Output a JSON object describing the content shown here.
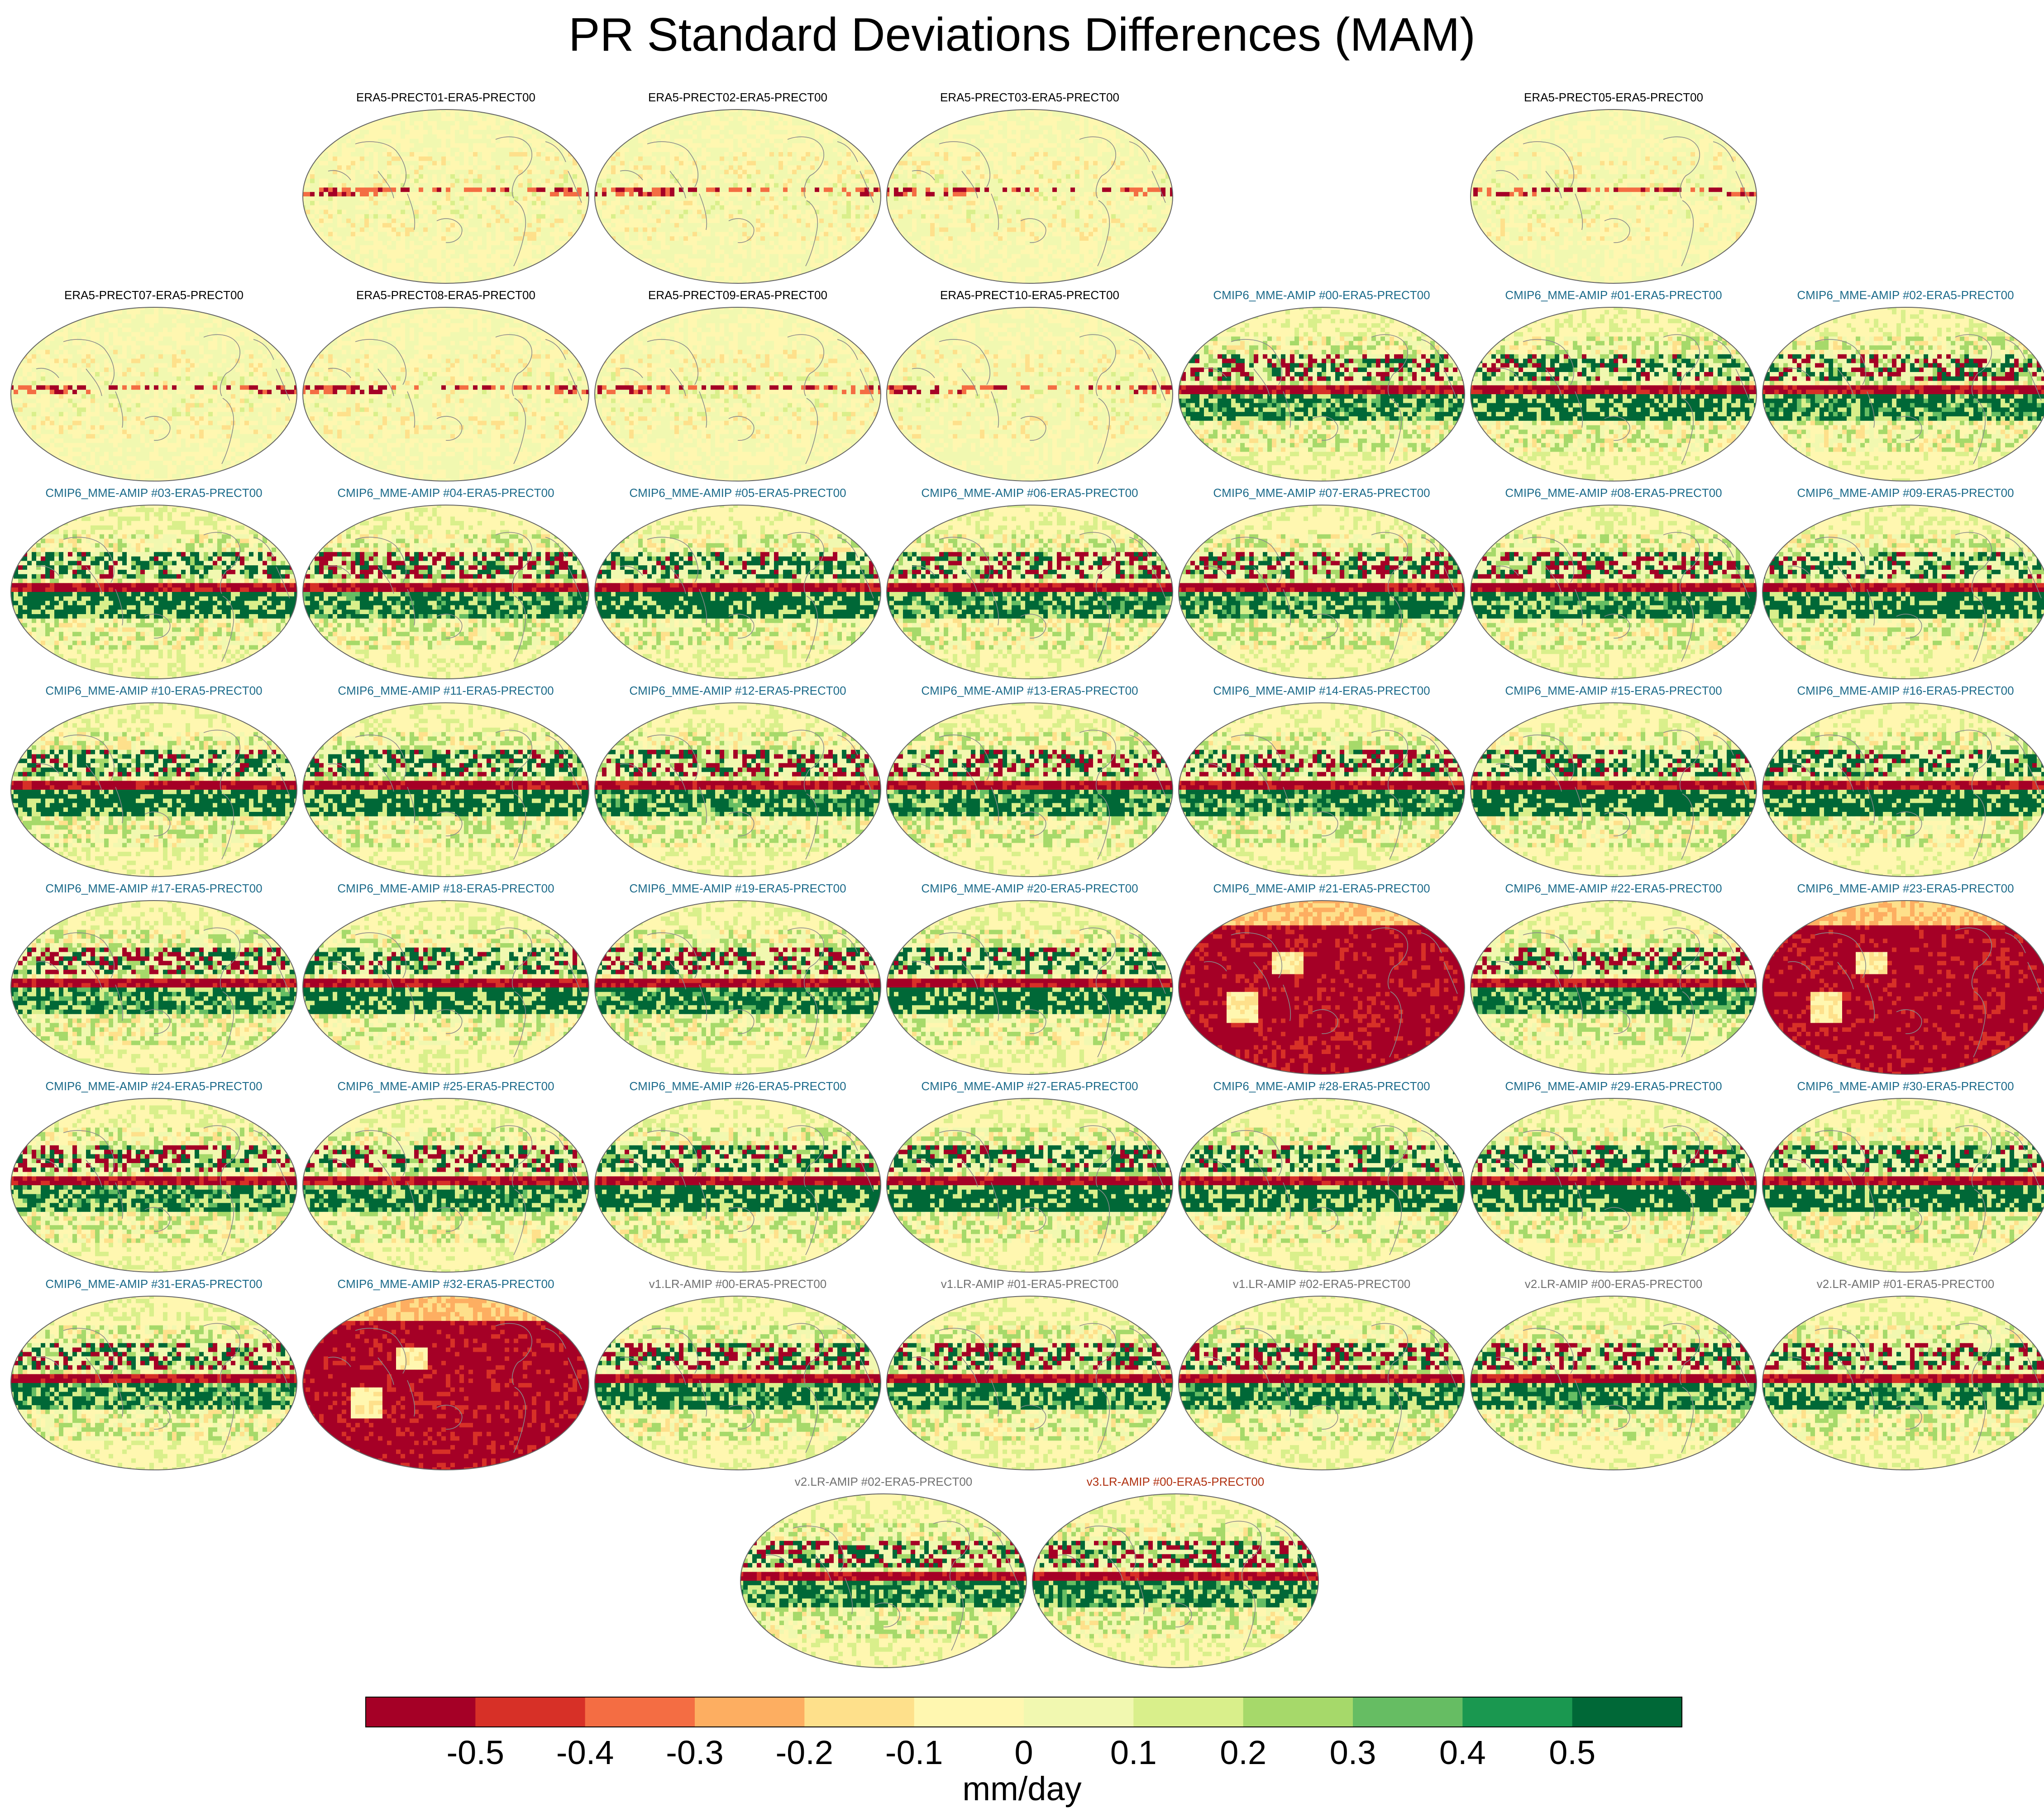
{
  "chart_data": {
    "type": "heatmap",
    "title": "PR Standard Deviations Differences (MAM)",
    "projection": "global map (Robinson-like), ellipse outline",
    "color_scale": {
      "units": "mm/day",
      "tick_labels": [
        "-0.5",
        "-0.4",
        "-0.3",
        "-0.2",
        "-0.1",
        "0",
        "0.1",
        "0.2",
        "0.3",
        "0.4",
        "0.5"
      ],
      "ticks": [
        -0.5,
        -0.4,
        -0.3,
        -0.2,
        -0.1,
        0,
        0.1,
        0.2,
        0.3,
        0.4,
        0.5
      ],
      "range": [
        -0.6,
        0.6
      ],
      "colors": [
        "#a50026",
        "#d73027",
        "#f46d43",
        "#fdae61",
        "#fee08b",
        "#fff7b0",
        "#f1f8b0",
        "#d9ef8b",
        "#a6d96a",
        "#66bd63",
        "#1a9850",
        "#006837"
      ]
    },
    "panels": [
      {
        "title": "ERA5-PRECT01-ERA5-PRECT00",
        "group": "era5",
        "pattern": "era5"
      },
      {
        "title": "ERA5-PRECT02-ERA5-PRECT00",
        "group": "era5",
        "pattern": "era5"
      },
      {
        "title": "ERA5-PRECT03-ERA5-PRECT00",
        "group": "era5",
        "pattern": "era5"
      },
      {
        "title": "ERA5-PRECT05-ERA5-PRECT00",
        "group": "era5",
        "pattern": "era5"
      },
      {
        "title": "ERA5-PRECT07-ERA5-PRECT00",
        "group": "era5",
        "pattern": "era5"
      },
      {
        "title": "ERA5-PRECT08-ERA5-PRECT00",
        "group": "era5",
        "pattern": "era5"
      },
      {
        "title": "ERA5-PRECT09-ERA5-PRECT00",
        "group": "era5",
        "pattern": "era5"
      },
      {
        "title": "ERA5-PRECT10-ERA5-PRECT00",
        "group": "era5",
        "pattern": "era5"
      },
      {
        "title": "CMIP6_MME-AMIP  #00-ERA5-PRECT00",
        "group": "cmip",
        "pattern": "mixed"
      },
      {
        "title": "CMIP6_MME-AMIP  #01-ERA5-PRECT00",
        "group": "cmip",
        "pattern": "green"
      },
      {
        "title": "CMIP6_MME-AMIP  #02-ERA5-PRECT00",
        "group": "cmip",
        "pattern": "mixed"
      },
      {
        "title": "CMIP6_MME-AMIP  #03-ERA5-PRECT00",
        "group": "cmip",
        "pattern": "green"
      },
      {
        "title": "CMIP6_MME-AMIP  #04-ERA5-PRECT00",
        "group": "cmip",
        "pattern": "mixed"
      },
      {
        "title": "CMIP6_MME-AMIP  #05-ERA5-PRECT00",
        "group": "cmip",
        "pattern": "green"
      },
      {
        "title": "CMIP6_MME-AMIP  #06-ERA5-PRECT00",
        "group": "cmip",
        "pattern": "mixed"
      },
      {
        "title": "CMIP6_MME-AMIP  #07-ERA5-PRECT00",
        "group": "cmip",
        "pattern": "mixed"
      },
      {
        "title": "CMIP6_MME-AMIP  #08-ERA5-PRECT00",
        "group": "cmip",
        "pattern": "mixed"
      },
      {
        "title": "CMIP6_MME-AMIP  #09-ERA5-PRECT00",
        "group": "cmip",
        "pattern": "green"
      },
      {
        "title": "CMIP6_MME-AMIP  #10-ERA5-PRECT00",
        "group": "cmip",
        "pattern": "green"
      },
      {
        "title": "CMIP6_MME-AMIP  #11-ERA5-PRECT00",
        "group": "cmip",
        "pattern": "green"
      },
      {
        "title": "CMIP6_MME-AMIP  #12-ERA5-PRECT00",
        "group": "cmip",
        "pattern": "mixed"
      },
      {
        "title": "CMIP6_MME-AMIP  #13-ERA5-PRECT00",
        "group": "cmip",
        "pattern": "mixed"
      },
      {
        "title": "CMIP6_MME-AMIP  #14-ERA5-PRECT00",
        "group": "cmip",
        "pattern": "mixed"
      },
      {
        "title": "CMIP6_MME-AMIP  #15-ERA5-PRECT00",
        "group": "cmip",
        "pattern": "green"
      },
      {
        "title": "CMIP6_MME-AMIP  #16-ERA5-PRECT00",
        "group": "cmip",
        "pattern": "green"
      },
      {
        "title": "CMIP6_MME-AMIP  #17-ERA5-PRECT00",
        "group": "cmip",
        "pattern": "mixed"
      },
      {
        "title": "CMIP6_MME-AMIP  #18-ERA5-PRECT00",
        "group": "cmip",
        "pattern": "green"
      },
      {
        "title": "CMIP6_MME-AMIP  #19-ERA5-PRECT00",
        "group": "cmip",
        "pattern": "mixed"
      },
      {
        "title": "CMIP6_MME-AMIP  #20-ERA5-PRECT00",
        "group": "cmip",
        "pattern": "green"
      },
      {
        "title": "CMIP6_MME-AMIP  #21-ERA5-PRECT00",
        "group": "cmip",
        "pattern": "red"
      },
      {
        "title": "CMIP6_MME-AMIP  #22-ERA5-PRECT00",
        "group": "cmip",
        "pattern": "mixed"
      },
      {
        "title": "CMIP6_MME-AMIP  #23-ERA5-PRECT00",
        "group": "cmip",
        "pattern": "red"
      },
      {
        "title": "CMIP6_MME-AMIP  #24-ERA5-PRECT00",
        "group": "cmip",
        "pattern": "mixed"
      },
      {
        "title": "CMIP6_MME-AMIP  #25-ERA5-PRECT00",
        "group": "cmip",
        "pattern": "mixed"
      },
      {
        "title": "CMIP6_MME-AMIP  #26-ERA5-PRECT00",
        "group": "cmip",
        "pattern": "green"
      },
      {
        "title": "CMIP6_MME-AMIP  #27-ERA5-PRECT00",
        "group": "cmip",
        "pattern": "green"
      },
      {
        "title": "CMIP6_MME-AMIP  #28-ERA5-PRECT00",
        "group": "cmip",
        "pattern": "green"
      },
      {
        "title": "CMIP6_MME-AMIP  #29-ERA5-PRECT00",
        "group": "cmip",
        "pattern": "green"
      },
      {
        "title": "CMIP6_MME-AMIP  #30-ERA5-PRECT00",
        "group": "cmip",
        "pattern": "green"
      },
      {
        "title": "CMIP6_MME-AMIP  #31-ERA5-PRECT00",
        "group": "cmip",
        "pattern": "mixed"
      },
      {
        "title": "CMIP6_MME-AMIP  #32-ERA5-PRECT00",
        "group": "cmip",
        "pattern": "red"
      },
      {
        "title": "v1.LR-AMIP  #00-ERA5-PRECT00",
        "group": "v1",
        "pattern": "mixed"
      },
      {
        "title": "v1.LR-AMIP  #01-ERA5-PRECT00",
        "group": "v1",
        "pattern": "mixed"
      },
      {
        "title": "v1.LR-AMIP  #02-ERA5-PRECT00",
        "group": "v1",
        "pattern": "mixed"
      },
      {
        "title": "v2.LR-AMIP  #00-ERA5-PRECT00",
        "group": "v2",
        "pattern": "mixed"
      },
      {
        "title": "v2.LR-AMIP  #01-ERA5-PRECT00",
        "group": "v2",
        "pattern": "mixed"
      },
      {
        "title": "v2.LR-AMIP  #02-ERA5-PRECT00",
        "group": "v2",
        "pattern": "mixed"
      },
      {
        "title": "v3.LR-AMIP  #00-ERA5-PRECT00",
        "group": "v3",
        "pattern": "mixed"
      }
    ],
    "group_title_colors": {
      "era5": "#000000",
      "cmip": "#1b6a8a",
      "v1": "#707070",
      "v2": "#707070",
      "v3": "#b03010"
    }
  }
}
